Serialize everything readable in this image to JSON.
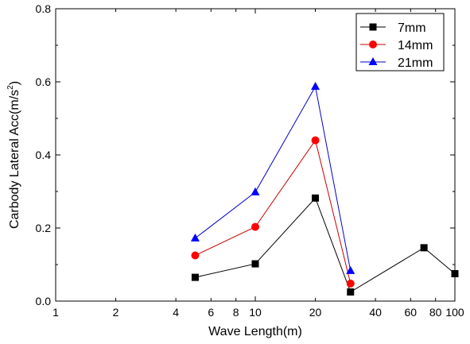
{
  "chart_data": {
    "type": "line",
    "xlabel": "Wave Length(m)",
    "ylabel": "Carbody Lateral Acc(m/s",
    "ylabel_sup": "2",
    "ylabel_close": ")",
    "xscale": "log",
    "xlim": [
      1,
      100
    ],
    "ylim": [
      0,
      0.8
    ],
    "xticks": [
      1,
      2,
      4,
      6,
      8,
      10,
      20,
      40,
      60,
      80,
      100
    ],
    "xtick_labels": [
      "1",
      "2",
      "4",
      "6",
      "8",
      "10",
      "20",
      "40",
      "60",
      "80",
      "100"
    ],
    "yticks": [
      0.0,
      0.2,
      0.4,
      0.6,
      0.8
    ],
    "ytick_labels": [
      "0.0",
      "0.2",
      "0.4",
      "0.6",
      "0.8"
    ],
    "grid": false,
    "legend_position": "top-right",
    "series": [
      {
        "name": "7mm",
        "color": "#000000",
        "marker": "square",
        "x": [
          5,
          10,
          20,
          30,
          70,
          100
        ],
        "y": [
          0.065,
          0.102,
          0.282,
          0.025,
          0.146,
          0.075
        ]
      },
      {
        "name": "14mm",
        "color": "#ff0000",
        "line_color": "#cc0000",
        "marker": "circle",
        "x": [
          5,
          10,
          20,
          30
        ],
        "y": [
          0.125,
          0.203,
          0.44,
          0.048
        ]
      },
      {
        "name": "21mm",
        "color": "#0000ff",
        "line_color": "#0000cc",
        "marker": "triangle",
        "x": [
          5,
          10,
          20,
          30
        ],
        "y": [
          0.172,
          0.298,
          0.587,
          0.083
        ]
      }
    ]
  }
}
